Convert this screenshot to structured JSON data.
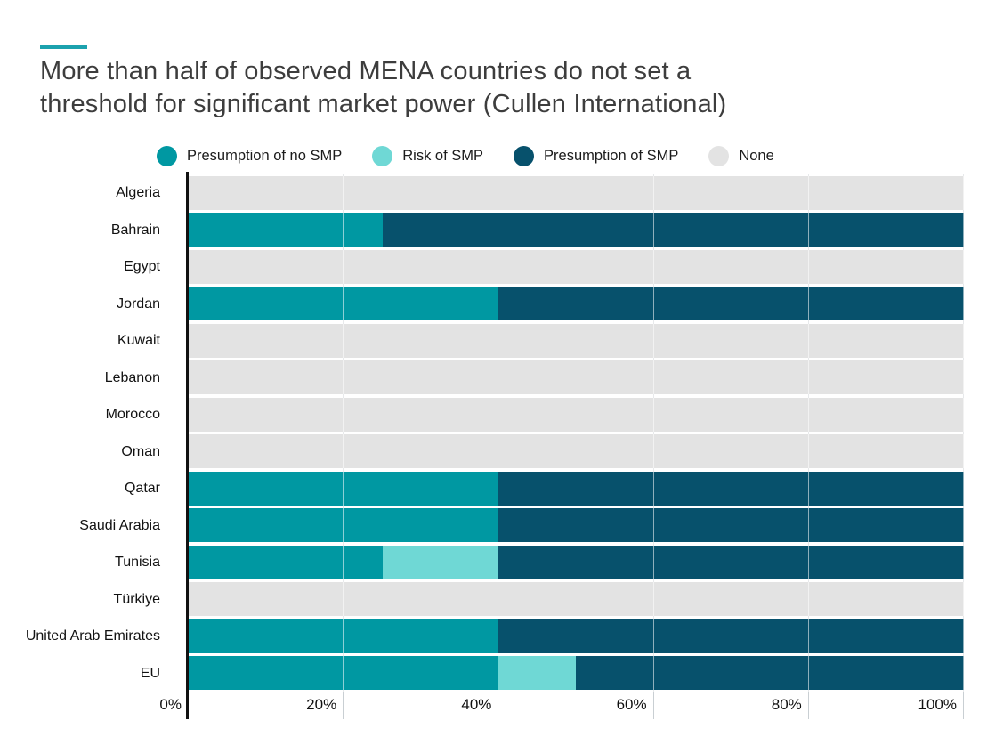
{
  "title": {
    "line1": "More than half of observed MENA countries do not set a",
    "line2": "threshold for significant market power (Cullen International)"
  },
  "legend": [
    {
      "key": "no_smp",
      "label": "Presumption of no SMP",
      "color": "#0098A2"
    },
    {
      "key": "risk",
      "label": "Risk of SMP",
      "color": "#6FD8D5"
    },
    {
      "key": "smp",
      "label": "Presumption of SMP",
      "color": "#07516C"
    },
    {
      "key": "none",
      "label": "None",
      "color": "#E3E3E3"
    }
  ],
  "chart_data": {
    "type": "bar",
    "orientation": "horizontal",
    "stacked": true,
    "unit": "percent",
    "title": "More than half of observed MENA countries do not set a threshold for significant market power (Cullen International)",
    "categories": [
      "Algeria",
      "Bahrain",
      "Egypt",
      "Jordan",
      "Kuwait",
      "Lebanon",
      "Morocco",
      "Oman",
      "Qatar",
      "Saudi Arabia",
      "Tunisia",
      "Türkiye",
      "United Arab Emirates",
      "EU"
    ],
    "series": [
      {
        "name": "Presumption of no SMP",
        "key": "no_smp",
        "color": "#0098A2",
        "values": [
          0,
          25,
          0,
          40,
          0,
          0,
          0,
          0,
          40,
          40,
          25,
          0,
          40,
          40
        ]
      },
      {
        "name": "Risk of SMP",
        "key": "risk",
        "color": "#6FD8D5",
        "values": [
          0,
          0,
          0,
          0,
          0,
          0,
          0,
          0,
          0,
          0,
          15,
          0,
          0,
          10
        ]
      },
      {
        "name": "Presumption of SMP",
        "key": "smp",
        "color": "#07516C",
        "values": [
          0,
          75,
          0,
          60,
          0,
          0,
          0,
          0,
          60,
          60,
          60,
          0,
          60,
          50
        ]
      },
      {
        "name": "None",
        "key": "none",
        "color": "#E3E3E3",
        "values": [
          100,
          0,
          100,
          0,
          100,
          100,
          100,
          100,
          0,
          0,
          0,
          100,
          0,
          0
        ]
      }
    ],
    "x_axis": {
      "tick_labels": [
        "0%",
        "20%",
        "40%",
        "60%",
        "80%",
        "100%"
      ],
      "range": [
        0,
        100
      ],
      "grid": true
    },
    "legend_position": "top"
  },
  "colors": {
    "accent_dash": "#1CA2AE",
    "gridline": "#C9CFD3",
    "axis_line": "#111111",
    "title_text": "#3D3D3D"
  }
}
